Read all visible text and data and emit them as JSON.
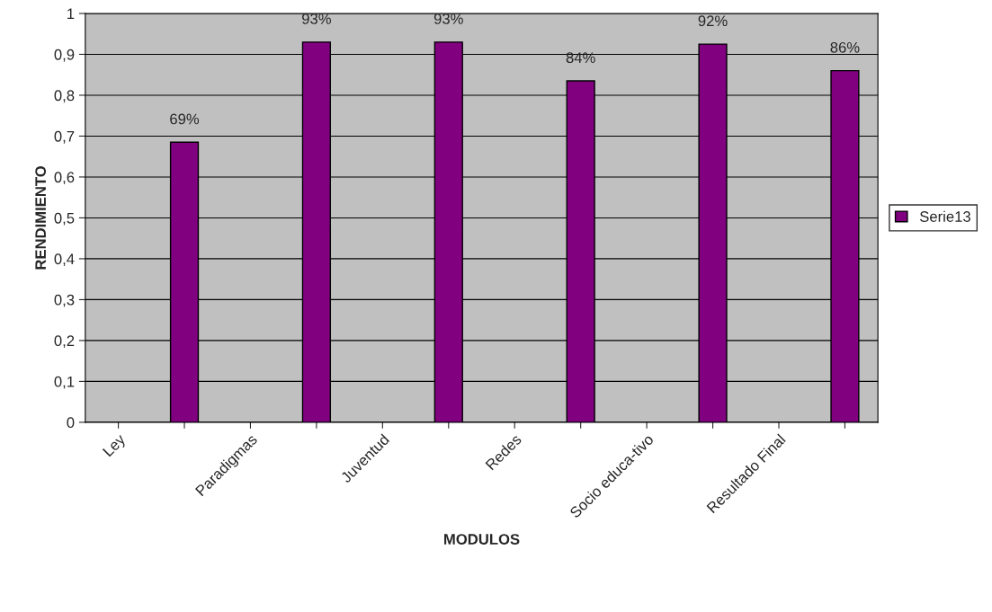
{
  "chart_data": {
    "type": "bar",
    "xlabel": "MODULOS",
    "ylabel": "RENDIMIENTO",
    "categories": [
      "Ley",
      null,
      "Paradigmas",
      null,
      "Juventud",
      null,
      "Redes",
      null,
      "Socio educa-tivo",
      null,
      "Resultado Final",
      null
    ],
    "series": [
      {
        "name": "Serie13",
        "color": "#800080",
        "values": [
          null,
          0.685,
          null,
          0.93,
          null,
          0.93,
          null,
          0.835,
          null,
          0.925,
          null,
          0.86
        ],
        "value_labels": [
          null,
          "69%",
          null,
          "93%",
          null,
          "93%",
          null,
          "84%",
          null,
          "92%",
          null,
          "86%"
        ]
      }
    ],
    "ylim": [
      0,
      1
    ],
    "yticks": [
      0,
      {
        "value": 0.1,
        "label": "0,1"
      },
      {
        "value": 0.2,
        "label": "0,2"
      },
      {
        "value": 0.3,
        "label": "0,3"
      },
      {
        "value": 0.4,
        "label": "0,4"
      },
      {
        "value": 0.5,
        "label": "0,5"
      },
      {
        "value": 0.6,
        "label": "0,6"
      },
      {
        "value": 0.7,
        "label": "0,7"
      },
      {
        "value": 0.8,
        "label": "0,8"
      },
      {
        "value": 0.9,
        "label": "0,9"
      },
      1
    ],
    "grid": "y",
    "legend": "right"
  }
}
